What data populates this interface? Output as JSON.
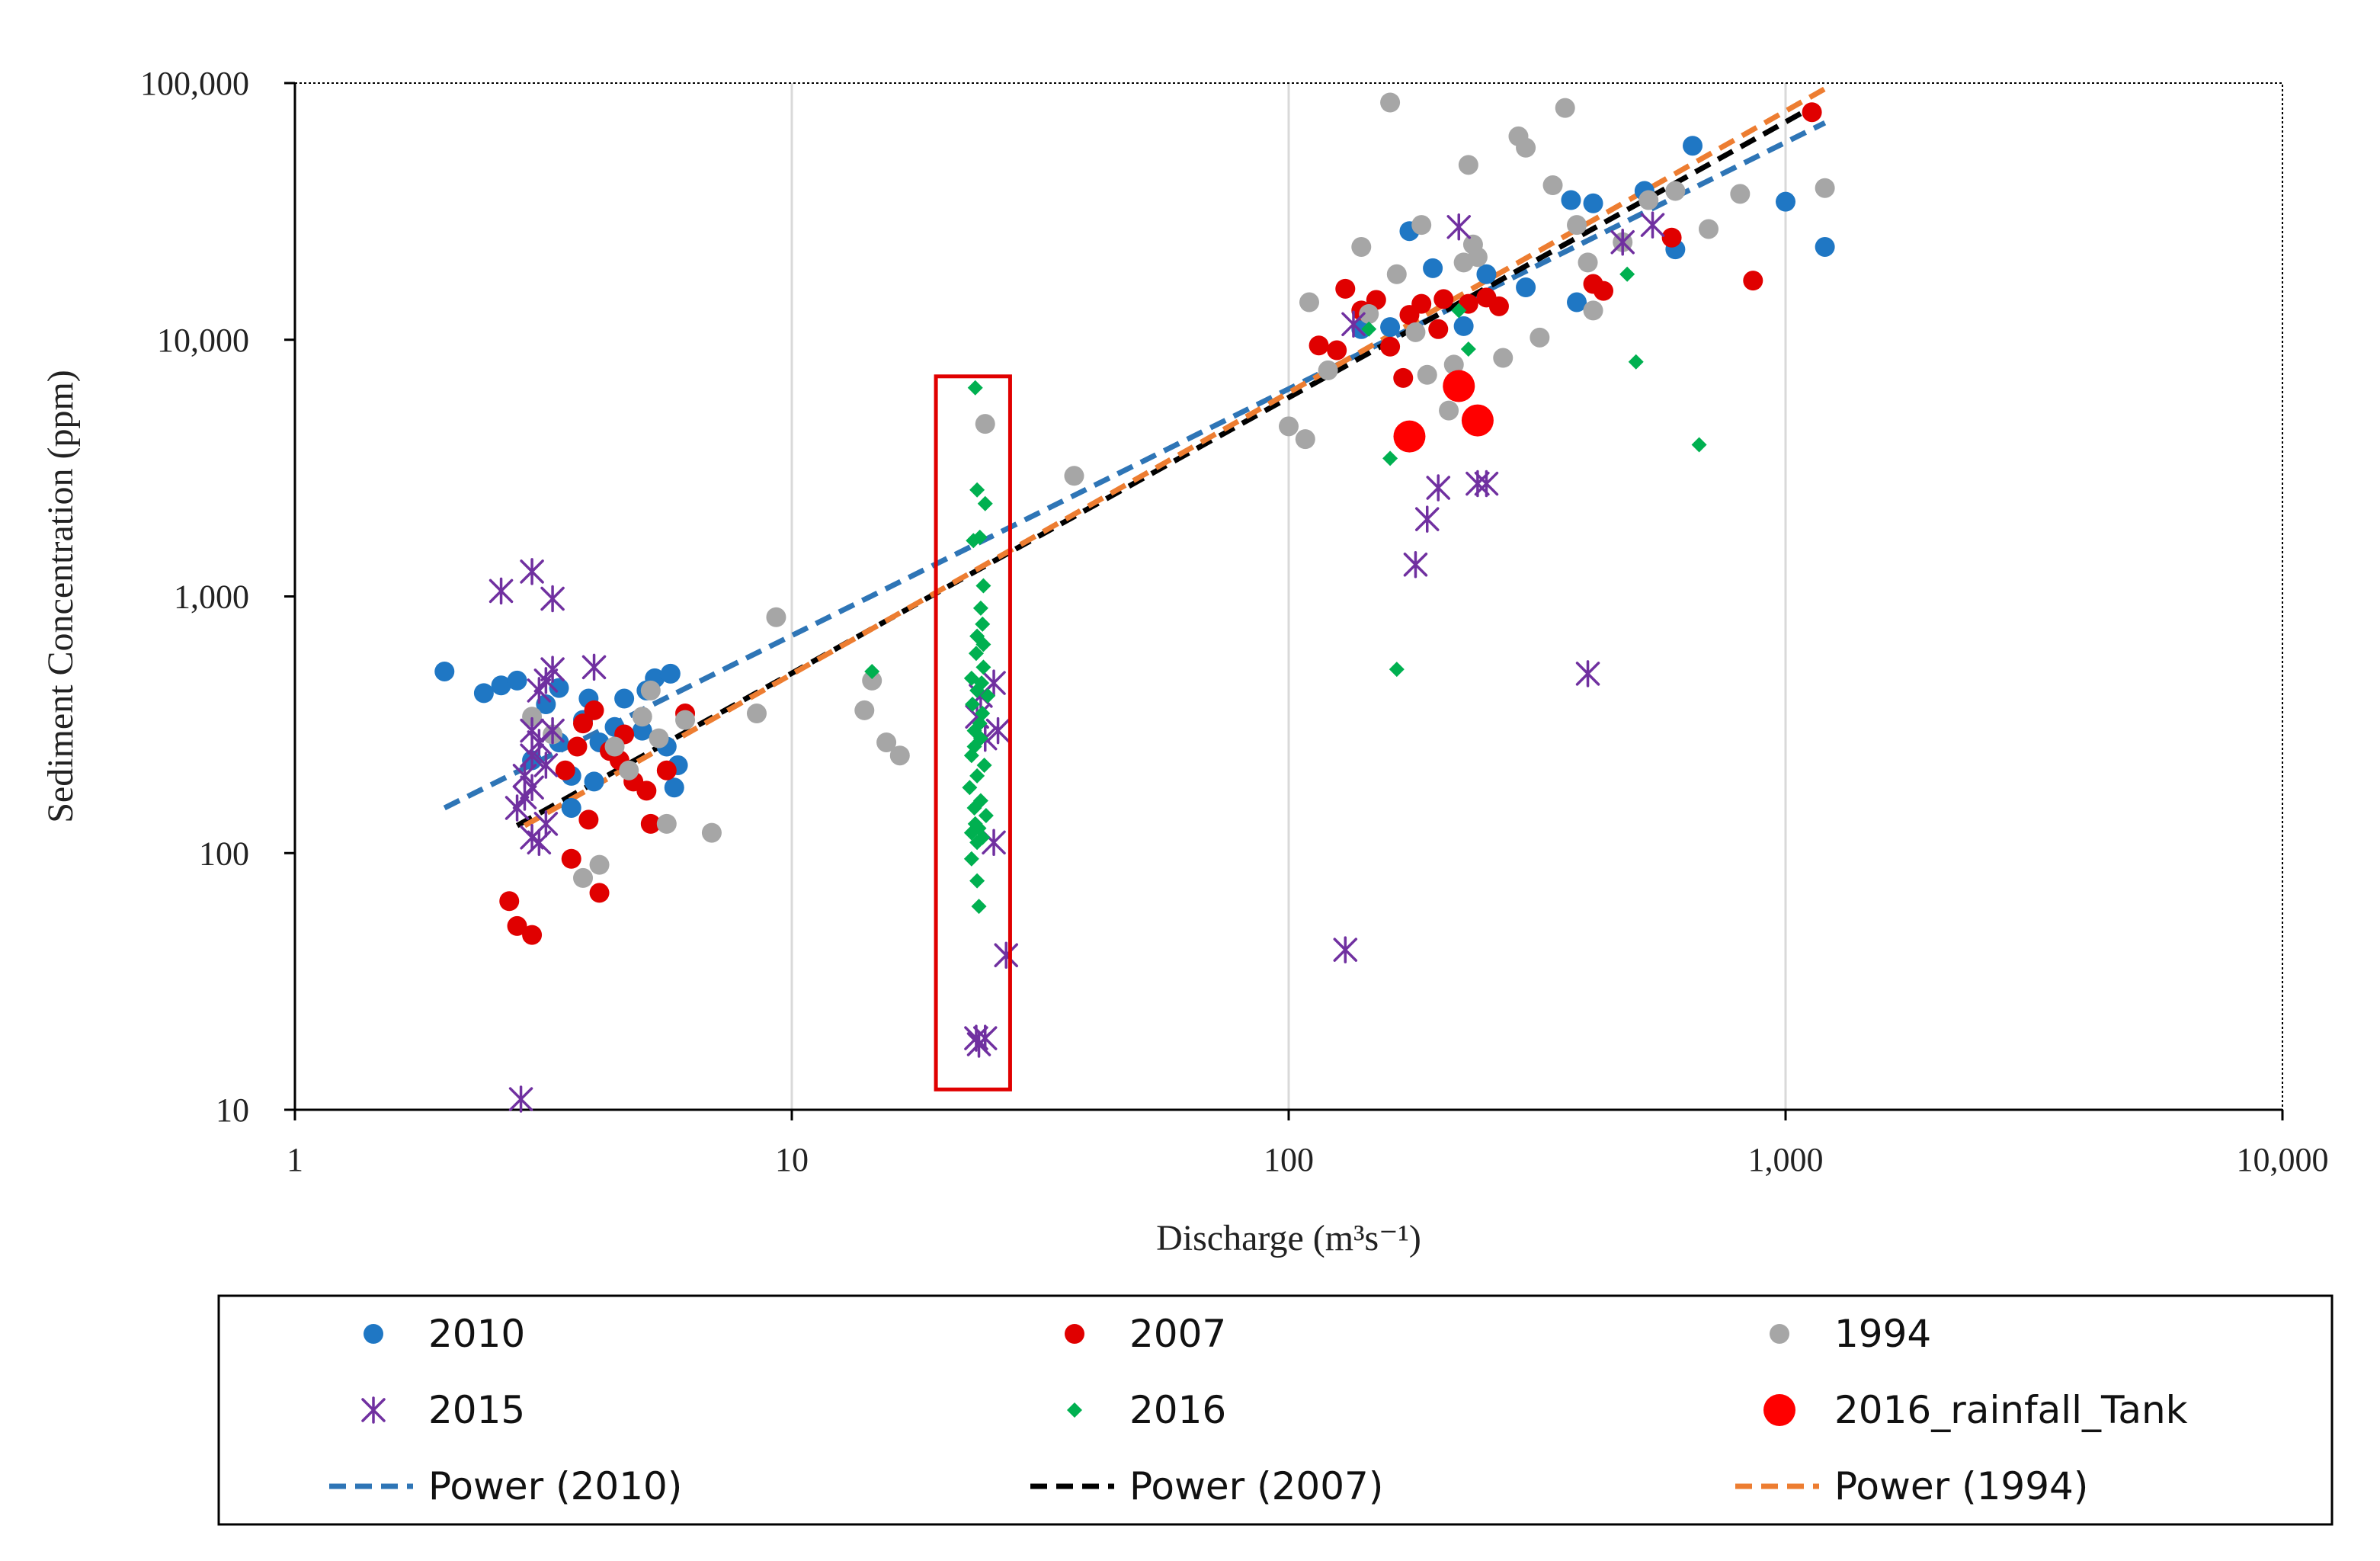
{
  "chart_data": {
    "type": "scatter",
    "title": "",
    "xlabel": "Discharge (m³s⁻¹)",
    "ylabel": "Sediment Concentration (ppm)",
    "x_scale": "log",
    "y_scale": "log",
    "xlim": [
      1,
      10000
    ],
    "ylim": [
      10,
      100000
    ],
    "x_ticks": [
      1,
      10,
      100,
      1000,
      10000
    ],
    "x_tick_labels": [
      "1",
      "10",
      "100",
      "1,000",
      "10,000"
    ],
    "y_ticks": [
      10,
      100,
      1000,
      10000,
      100000
    ],
    "y_tick_labels": [
      "10",
      "100",
      "1,000",
      "10,000",
      "100,000"
    ],
    "grid": "vertical gridlines at major x ticks",
    "legend_position": "bottom",
    "highlight_box": {
      "x_range": [
        19.5,
        27.5
      ],
      "y_range": [
        12,
        7200
      ],
      "color": "#e00000"
    },
    "series": [
      {
        "name": "2010",
        "marker": "circle",
        "color": "#1f77c4",
        "size": "medium",
        "points": [
          [
            2.0,
            510
          ],
          [
            2.4,
            420
          ],
          [
            2.6,
            450
          ],
          [
            2.8,
            470
          ],
          [
            3.0,
            230
          ],
          [
            3.2,
            380
          ],
          [
            3.4,
            270
          ],
          [
            3.6,
            200
          ],
          [
            3.8,
            330
          ],
          [
            3.9,
            400
          ],
          [
            4.1,
            270
          ],
          [
            4.4,
            310
          ],
          [
            4.6,
            400
          ],
          [
            5.0,
            300
          ],
          [
            5.1,
            430
          ],
          [
            5.3,
            480
          ],
          [
            5.6,
            260
          ],
          [
            5.7,
            500
          ],
          [
            5.9,
            220
          ],
          [
            5.8,
            180
          ],
          [
            3.4,
            440
          ],
          [
            3.6,
            150
          ],
          [
            4.0,
            190
          ],
          [
            160,
            11200
          ],
          [
            175,
            26500
          ],
          [
            195,
            19000
          ],
          [
            225,
            11300
          ],
          [
            250,
            18000
          ],
          [
            300,
            16000
          ],
          [
            370,
            35000
          ],
          [
            410,
            34000
          ],
          [
            520,
            38000
          ],
          [
            600,
            22500
          ],
          [
            650,
            57000
          ],
          [
            1000,
            34500
          ],
          [
            1200,
            23000
          ],
          [
            140,
            11000
          ],
          [
            380,
            14000
          ]
        ]
      },
      {
        "name": "2007",
        "marker": "circle",
        "color": "#e00000",
        "size": "medium",
        "points": [
          [
            2.7,
            65
          ],
          [
            2.8,
            52
          ],
          [
            3.0,
            48
          ],
          [
            3.5,
            210
          ],
          [
            3.6,
            95
          ],
          [
            3.8,
            320
          ],
          [
            3.9,
            135
          ],
          [
            4.0,
            360
          ],
          [
            4.1,
            70
          ],
          [
            4.3,
            250
          ],
          [
            4.6,
            290
          ],
          [
            4.8,
            190
          ],
          [
            5.1,
            175
          ],
          [
            5.2,
            130
          ],
          [
            5.6,
            210
          ],
          [
            6.1,
            350
          ],
          [
            3.7,
            260
          ],
          [
            4.5,
            230
          ],
          [
            115,
            9500
          ],
          [
            125,
            9100
          ],
          [
            130,
            15800
          ],
          [
            140,
            13000
          ],
          [
            150,
            14300
          ],
          [
            160,
            9400
          ],
          [
            170,
            7100
          ],
          [
            175,
            12500
          ],
          [
            185,
            13800
          ],
          [
            200,
            11000
          ],
          [
            205,
            14400
          ],
          [
            230,
            13800
          ],
          [
            250,
            14600
          ],
          [
            265,
            13500
          ],
          [
            410,
            16500
          ],
          [
            430,
            15500
          ],
          [
            590,
            25000
          ],
          [
            860,
            17000
          ],
          [
            1130,
            77000
          ]
        ]
      },
      {
        "name": "1994",
        "marker": "circle",
        "color": "#a6a6a6",
        "size": "medium",
        "points": [
          [
            3.0,
            340
          ],
          [
            3.3,
            290
          ],
          [
            3.8,
            80
          ],
          [
            4.1,
            90
          ],
          [
            4.4,
            260
          ],
          [
            4.7,
            210
          ],
          [
            5.0,
            340
          ],
          [
            5.2,
            430
          ],
          [
            5.4,
            280
          ],
          [
            5.6,
            130
          ],
          [
            6.1,
            330
          ],
          [
            6.9,
            120
          ],
          [
            8.5,
            350
          ],
          [
            9.3,
            830
          ],
          [
            14.0,
            360
          ],
          [
            14.5,
            470
          ],
          [
            15.5,
            270
          ],
          [
            16.5,
            240
          ],
          [
            24.5,
            4700
          ],
          [
            37.0,
            2950
          ],
          [
            100,
            4600
          ],
          [
            108,
            4100
          ],
          [
            110,
            14000
          ],
          [
            120,
            7600
          ],
          [
            140,
            23000
          ],
          [
            145,
            12600
          ],
          [
            160,
            84000
          ],
          [
            165,
            18000
          ],
          [
            180,
            10700
          ],
          [
            185,
            28000
          ],
          [
            190,
            7300
          ],
          [
            210,
            5300
          ],
          [
            215,
            8000
          ],
          [
            225,
            20000
          ],
          [
            230,
            48000
          ],
          [
            235,
            23500
          ],
          [
            240,
            21000
          ],
          [
            270,
            8500
          ],
          [
            290,
            62000
          ],
          [
            300,
            56000
          ],
          [
            320,
            10200
          ],
          [
            340,
            40000
          ],
          [
            360,
            80000
          ],
          [
            380,
            28000
          ],
          [
            400,
            20000
          ],
          [
            410,
            13000
          ],
          [
            470,
            24000
          ],
          [
            530,
            35000
          ],
          [
            600,
            38000
          ],
          [
            700,
            27000
          ],
          [
            810,
            37000
          ],
          [
            1200,
            39000
          ]
        ]
      },
      {
        "name": "2015",
        "marker": "asterisk",
        "color": "#7030a0",
        "size": "medium",
        "points": [
          [
            2.6,
            1050
          ],
          [
            2.85,
            11
          ],
          [
            3.0,
            1250
          ],
          [
            3.3,
            980
          ],
          [
            3.1,
            430
          ],
          [
            3.2,
            470
          ],
          [
            3.3,
            520
          ],
          [
            4.0,
            530
          ],
          [
            2.8,
            150
          ],
          [
            2.9,
            200
          ],
          [
            3.0,
            240
          ],
          [
            3.0,
            300
          ],
          [
            3.1,
            110
          ],
          [
            3.2,
            130
          ],
          [
            3.3,
            300
          ],
          [
            2.9,
            165
          ],
          [
            3.0,
            180
          ],
          [
            3.1,
            270
          ],
          [
            3.2,
            220
          ],
          [
            3.0,
            115
          ],
          [
            23.5,
            19
          ],
          [
            23.8,
            18
          ],
          [
            24.5,
            19
          ],
          [
            23.6,
            340
          ],
          [
            24.0,
            410
          ],
          [
            24.5,
            280
          ],
          [
            25.5,
            460
          ],
          [
            26.0,
            300
          ],
          [
            25.5,
            110
          ],
          [
            27.0,
            40
          ],
          [
            130,
            42
          ],
          [
            135,
            11500
          ],
          [
            180,
            1330
          ],
          [
            190,
            2000
          ],
          [
            200,
            2650
          ],
          [
            220,
            27500
          ],
          [
            240,
            2750
          ],
          [
            250,
            2750
          ],
          [
            400,
            500
          ],
          [
            470,
            24000
          ],
          [
            540,
            28000
          ]
        ]
      },
      {
        "name": "2016",
        "marker": "diamond",
        "color": "#00b050",
        "size": "small",
        "points": [
          [
            14.5,
            510
          ],
          [
            23.4,
            6500
          ],
          [
            23.2,
            1650
          ],
          [
            23.6,
            2600
          ],
          [
            23.9,
            1700
          ],
          [
            24.5,
            2300
          ],
          [
            24.3,
            1100
          ],
          [
            24.0,
            900
          ],
          [
            24.2,
            780
          ],
          [
            23.5,
            600
          ],
          [
            24.3,
            530
          ],
          [
            23.0,
            480
          ],
          [
            24.1,
            460
          ],
          [
            23.6,
            430
          ],
          [
            24.8,
            410
          ],
          [
            23.1,
            380
          ],
          [
            24.2,
            350
          ],
          [
            23.9,
            320
          ],
          [
            23.3,
            300
          ],
          [
            24.0,
            280
          ],
          [
            23.3,
            260
          ],
          [
            23.0,
            240
          ],
          [
            24.4,
            220
          ],
          [
            23.6,
            200
          ],
          [
            22.8,
            180
          ],
          [
            24.0,
            160
          ],
          [
            23.3,
            150
          ],
          [
            24.6,
            140
          ],
          [
            23.4,
            130
          ],
          [
            23.8,
            125
          ],
          [
            23.0,
            120
          ],
          [
            24.2,
            115
          ],
          [
            23.6,
            110
          ],
          [
            23.0,
            95
          ],
          [
            23.6,
            78
          ],
          [
            23.8,
            62
          ],
          [
            24.3,
            650
          ],
          [
            23.6,
            700
          ],
          [
            145,
            11000
          ],
          [
            160,
            3450
          ],
          [
            165,
            520
          ],
          [
            220,
            13000
          ],
          [
            230,
            9200
          ],
          [
            480,
            18000
          ],
          [
            500,
            8200
          ],
          [
            670,
            3900
          ]
        ]
      },
      {
        "name": "2016_rainfall_Tank",
        "marker": "circle",
        "color": "#ff0000",
        "size": "large",
        "points": [
          [
            175,
            4200
          ],
          [
            220,
            6600
          ],
          [
            240,
            4850
          ]
        ]
      }
    ],
    "trendlines": [
      {
        "name": "Power (2010)",
        "color": "#2e75b6",
        "dash": "dashed",
        "x_range": [
          2.0,
          1200
        ],
        "y_range": [
          150,
          70000
        ]
      },
      {
        "name": "Power (2007)",
        "color": "#000000",
        "dash": "dashed",
        "x_range": [
          2.8,
          1150
        ],
        "y_range": [
          128,
          82000
        ]
      },
      {
        "name": "Power (1994)",
        "color": "#ed7d31",
        "dash": "dashed",
        "x_range": [
          2.9,
          1200
        ],
        "y_range": [
          128,
          95000
        ]
      }
    ],
    "legend": [
      {
        "label": "2010",
        "series": "2010"
      },
      {
        "label": "2007",
        "series": "2007"
      },
      {
        "label": "1994",
        "series": "1994"
      },
      {
        "label": "2015",
        "series": "2015"
      },
      {
        "label": "2016",
        "series": "2016"
      },
      {
        "label": "2016_rainfall_Tank",
        "series": "2016_rainfall_Tank"
      },
      {
        "label": "Power (2010)",
        "trendline": "Power (2010)"
      },
      {
        "label": "Power (2007)",
        "trendline": "Power (2007)"
      },
      {
        "label": "Power (1994)",
        "trendline": "Power (1994)"
      }
    ]
  }
}
